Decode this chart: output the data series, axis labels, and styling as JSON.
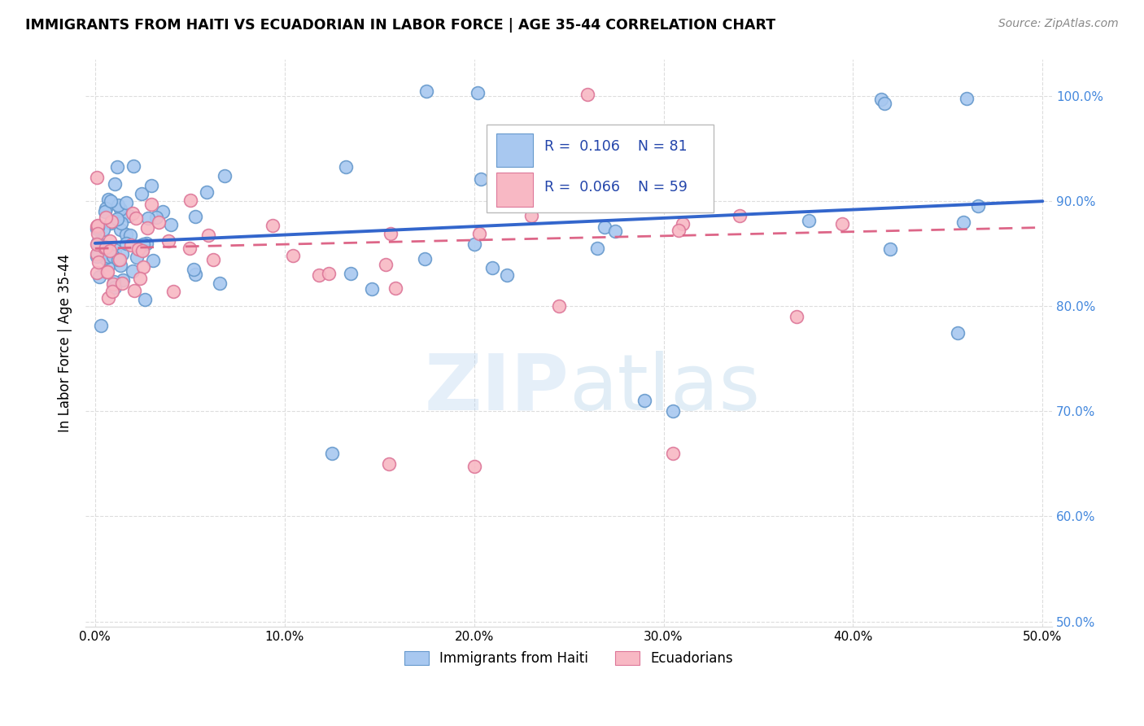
{
  "title": "IMMIGRANTS FROM HAITI VS ECUADORIAN IN LABOR FORCE | AGE 35-44 CORRELATION CHART",
  "source": "Source: ZipAtlas.com",
  "ylabel": "In Labor Force | Age 35-44",
  "xlim": [
    -0.005,
    0.505
  ],
  "ylim": [
    0.495,
    1.035
  ],
  "xticks": [
    0.0,
    0.1,
    0.2,
    0.3,
    0.4,
    0.5
  ],
  "xticklabels": [
    "0.0%",
    "10.0%",
    "20.0%",
    "30.0%",
    "40.0%",
    "50.0%"
  ],
  "yticks_right": [
    0.5,
    0.6,
    0.7,
    0.8,
    0.9,
    1.0
  ],
  "yticklabels_right": [
    "50.0%",
    "60.0%",
    "70.0%",
    "80.0%",
    "90.0%",
    "100.0%"
  ],
  "haiti_color": "#A8C8F0",
  "haiti_edge_color": "#6699CC",
  "ecuador_color": "#F8B8C4",
  "ecuador_edge_color": "#DD7799",
  "haiti_R": 0.106,
  "haiti_N": 81,
  "ecuador_R": 0.066,
  "ecuador_N": 59,
  "haiti_trend_color": "#3366CC",
  "ecuador_trend_color": "#DD6688",
  "watermark": "ZIPatlas",
  "legend_R_color": "#2244AA",
  "right_axis_color": "#4488DD",
  "grid_color": "#DDDDDD"
}
